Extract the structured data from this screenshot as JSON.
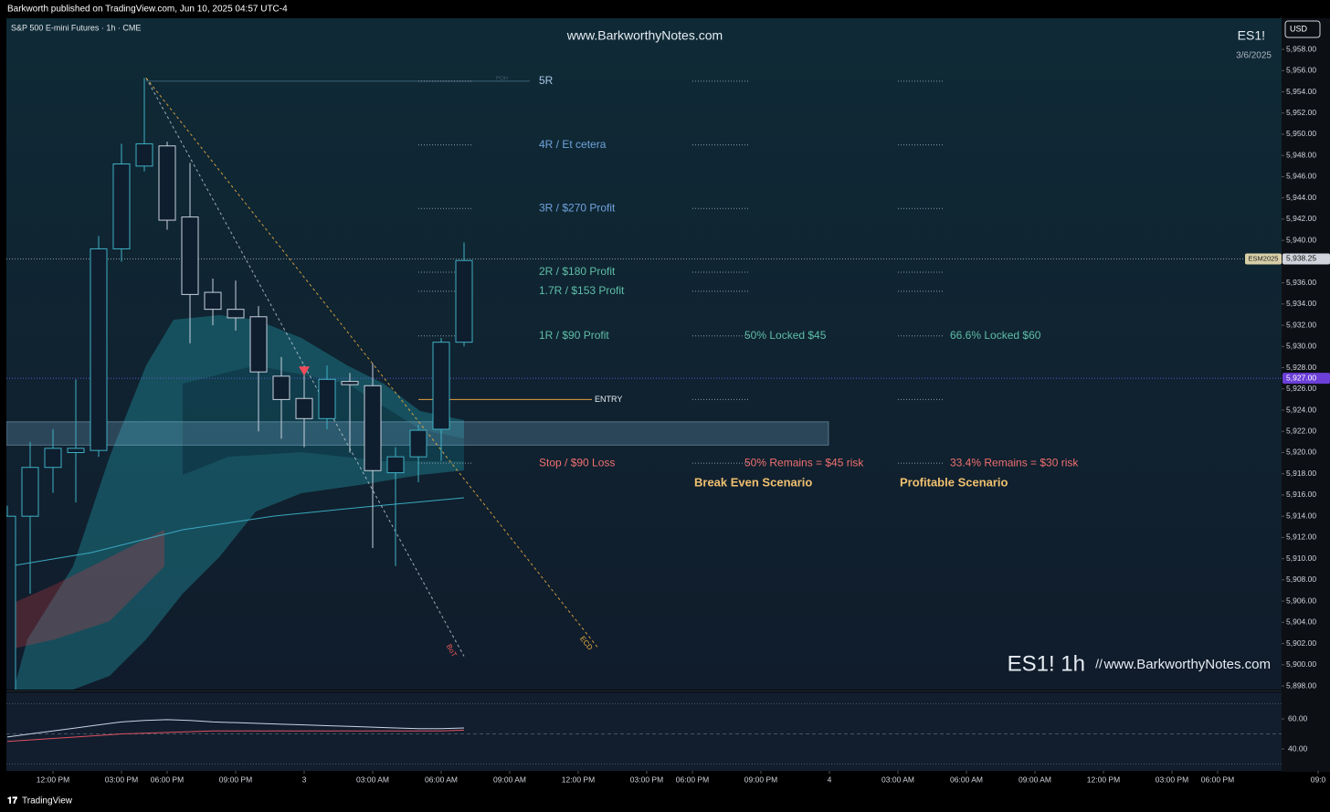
{
  "header": {
    "publisher": "Barkworth published on TradingView.com, Jun 10, 2025 04:57 UTC-4",
    "symbol": "S&P 500 E-mini Futures · 1h · CME",
    "watermark": "www.BarkworthyNotes.com",
    "ticker": "ES1!",
    "date": "3/6/2025",
    "currency": "USD",
    "footer_ticker": "ES1! 1h",
    "footer_sep": "//",
    "footer_site": "www.BarkworthyNotes.com",
    "brand": "TradingView"
  },
  "chart_data": {
    "type": "candlestick",
    "x": [
      0,
      1,
      2,
      3,
      4,
      5,
      6,
      7,
      8,
      9,
      10,
      11,
      12,
      13,
      14,
      15,
      16,
      17,
      18,
      19,
      20
    ],
    "open": [
      5896,
      5914,
      5918.6,
      5920,
      5920.2,
      5939.2,
      5947,
      5948.9,
      5942.2,
      5935.1,
      5933.5,
      5932.8,
      5927.2,
      5925.1,
      5923.2,
      5926.7,
      5926.3,
      5918.1,
      5919.6,
      5922.2,
      5930.4
    ],
    "high": [
      5915,
      5921,
      5922.2,
      5926.9,
      5940.4,
      5949.1,
      5955.3,
      5949.3,
      5947.3,
      5936.4,
      5936.2,
      5933.8,
      5929,
      5928.2,
      5928.2,
      5927.5,
      5928.4,
      5920.5,
      5922.6,
      5930.8,
      5939.8
    ],
    "low": [
      5895,
      5906.7,
      5916.2,
      5915.3,
      5919.6,
      5938,
      5946.5,
      5941,
      5930.3,
      5932,
      5931.5,
      5922,
      5921.3,
      5920.5,
      5922.2,
      5920,
      5911,
      5909.3,
      5917.2,
      5919.2,
      5930
    ],
    "close": [
      5914,
      5918.6,
      5920.4,
      5920.4,
      5939.2,
      5947.2,
      5949.1,
      5941.9,
      5934.9,
      5933.5,
      5932.7,
      5927.6,
      5925,
      5923.2,
      5926.9,
      5926.4,
      5918.3,
      5919.6,
      5922.1,
      5930.4,
      5938.1
    ],
    "up_color": "#3fb0c4",
    "down_color": "#c8d0dc",
    "xlim": [
      -0.04,
      55.8
    ],
    "xticks": [
      {
        "value": 2,
        "label": "12:00 PM"
      },
      {
        "value": 5,
        "label": "03:00 PM"
      },
      {
        "value": 7,
        "label": "06:00 PM"
      },
      {
        "value": 10,
        "label": "09:00 PM"
      },
      {
        "value": 13,
        "label": "3"
      },
      {
        "value": 16,
        "label": "03:00 AM"
      },
      {
        "value": 19,
        "label": "06:00 AM"
      },
      {
        "value": 22,
        "label": "09:00 AM"
      },
      {
        "value": 25,
        "label": "12:00 PM"
      },
      {
        "value": 28,
        "label": "03:00 PM"
      },
      {
        "value": 30,
        "label": "06:00 PM"
      },
      {
        "value": 33,
        "label": "09:00 PM"
      },
      {
        "value": 36,
        "label": "4"
      },
      {
        "value": 39,
        "label": "03:00 AM"
      },
      {
        "value": 42,
        "label": "06:00 AM"
      },
      {
        "value": 45,
        "label": "09:00 AM"
      },
      {
        "value": 48,
        "label": "12:00 PM"
      },
      {
        "value": 51,
        "label": "03:00 PM"
      },
      {
        "value": 53,
        "label": "06:00 PM"
      },
      {
        "value": 57.4,
        "label": "09:0"
      }
    ],
    "ylim": [
      5897.66,
      5960.93
    ],
    "yticks": [
      {
        "value": 5958,
        "label": "5,958.00"
      },
      {
        "value": 5956,
        "label": "5,956.00"
      },
      {
        "value": 5954,
        "label": "5,954.00"
      },
      {
        "value": 5952,
        "label": "5,952.00"
      },
      {
        "value": 5950,
        "label": "5,950.00"
      },
      {
        "value": 5948,
        "label": "5,948.00"
      },
      {
        "value": 5946,
        "label": "5,946.00"
      },
      {
        "value": 5944,
        "label": "5,944.00"
      },
      {
        "value": 5942,
        "label": "5,942.00"
      },
      {
        "value": 5940,
        "label": "5,940.00"
      },
      {
        "value": 5938,
        "label": "5,938.00"
      },
      {
        "value": 5936,
        "label": "5,936.00"
      },
      {
        "value": 5934,
        "label": "5,934.00"
      },
      {
        "value": 5932,
        "label": "5,932.00"
      },
      {
        "value": 5930,
        "label": "5,930.00"
      },
      {
        "value": 5928,
        "label": "5,928.00"
      },
      {
        "value": 5926,
        "label": "5,926.00"
      },
      {
        "value": 5924,
        "label": "5,924.00"
      },
      {
        "value": 5922,
        "label": "5,922.00"
      },
      {
        "value": 5920,
        "label": "5,920.00"
      },
      {
        "value": 5918,
        "label": "5,918.00"
      },
      {
        "value": 5916,
        "label": "5,916.00"
      },
      {
        "value": 5914,
        "label": "5,914.00"
      },
      {
        "value": 5912,
        "label": "5,912.00"
      },
      {
        "value": 5910,
        "label": "5,910.00"
      },
      {
        "value": 5908,
        "label": "5,908.00"
      },
      {
        "value": 5906,
        "label": "5,906.00"
      },
      {
        "value": 5904,
        "label": "5,904.00"
      },
      {
        "value": 5902,
        "label": "5,902.00"
      },
      {
        "value": 5900,
        "label": "5,900.00"
      },
      {
        "value": 5898,
        "label": "5,898.00"
      }
    ],
    "levels": [
      {
        "label": "5R",
        "value": 5955,
        "color": "#a9c8e8"
      },
      {
        "label": "4R / Et cetera",
        "value": 5949,
        "color": "#6fa3dc"
      },
      {
        "label": "3R / $270 Profit",
        "value": 5943,
        "color": "#6fa3dc"
      },
      {
        "label": "2R / $180 Profit",
        "value": 5937,
        "color": "#5fbfa8"
      },
      {
        "label": "1.7R / $153 Profit",
        "value": 5935.2,
        "color": "#5fbfa8"
      },
      {
        "label": "1R / $90 Profit",
        "value": 5931,
        "color": "#5fbfa8"
      },
      {
        "label": "ENTRY",
        "value": 5925,
        "color": "#e0a040"
      },
      {
        "label": "Stop / $90 Loss",
        "value": 5919,
        "color": "#f07070"
      }
    ],
    "scenarios": [
      {
        "title": "Break Even Scenario",
        "locked": "50% Locked $45",
        "remains": "50% Remains = $45 risk"
      },
      {
        "title": "Profitable Scenario",
        "locked": "66.6% Locked $60",
        "remains": "33.4% Remains = $30 risk"
      }
    ],
    "zone": [
      5920.7,
      5922.9
    ],
    "trendlines": [
      {
        "label": "BoT",
        "color": "#f05a5a",
        "stroke": "#b8c4d0",
        "x": [
          6.08,
          20
        ],
        "y": [
          5955.3,
          5900.8
        ]
      },
      {
        "label": "ECD",
        "color": "#f0b040",
        "stroke": "#f0b040",
        "x": [
          6.08,
          25.9
        ],
        "y": [
          5955.3,
          5901.5
        ]
      }
    ],
    "poh_label": "POH",
    "price_tags": [
      {
        "name": "ESM2025",
        "value": 5938.25,
        "label": "5,938.25",
        "color": "#d1d4dc"
      },
      {
        "value": 5927,
        "label": "5,927.00",
        "color": "#6b3fd8"
      }
    ],
    "signal": {
      "x": 13,
      "value": 5927.6,
      "color": "#f04a5a"
    },
    "oscillator": {
      "ylim": [
        26.7,
        77.6
      ],
      "yticks": [
        {
          "value": 60,
          "label": "60.00"
        },
        {
          "value": 40,
          "label": "40.00"
        }
      ],
      "levels": [
        70,
        50,
        30
      ],
      "series": [
        {
          "color": "#c8d4e8",
          "values": [
            48,
            50,
            52,
            54,
            56,
            58,
            59,
            59.5,
            59,
            58,
            57.5,
            57,
            56.5,
            56,
            55.5,
            55,
            54.5,
            54,
            53.5,
            53.5,
            54
          ]
        },
        {
          "color": "#e05060",
          "values": [
            45,
            46,
            47,
            48,
            49,
            50,
            50.5,
            51,
            51.5,
            52,
            52,
            52,
            52,
            52,
            52,
            52,
            52,
            52,
            52,
            52,
            52.5
          ]
        }
      ]
    }
  }
}
